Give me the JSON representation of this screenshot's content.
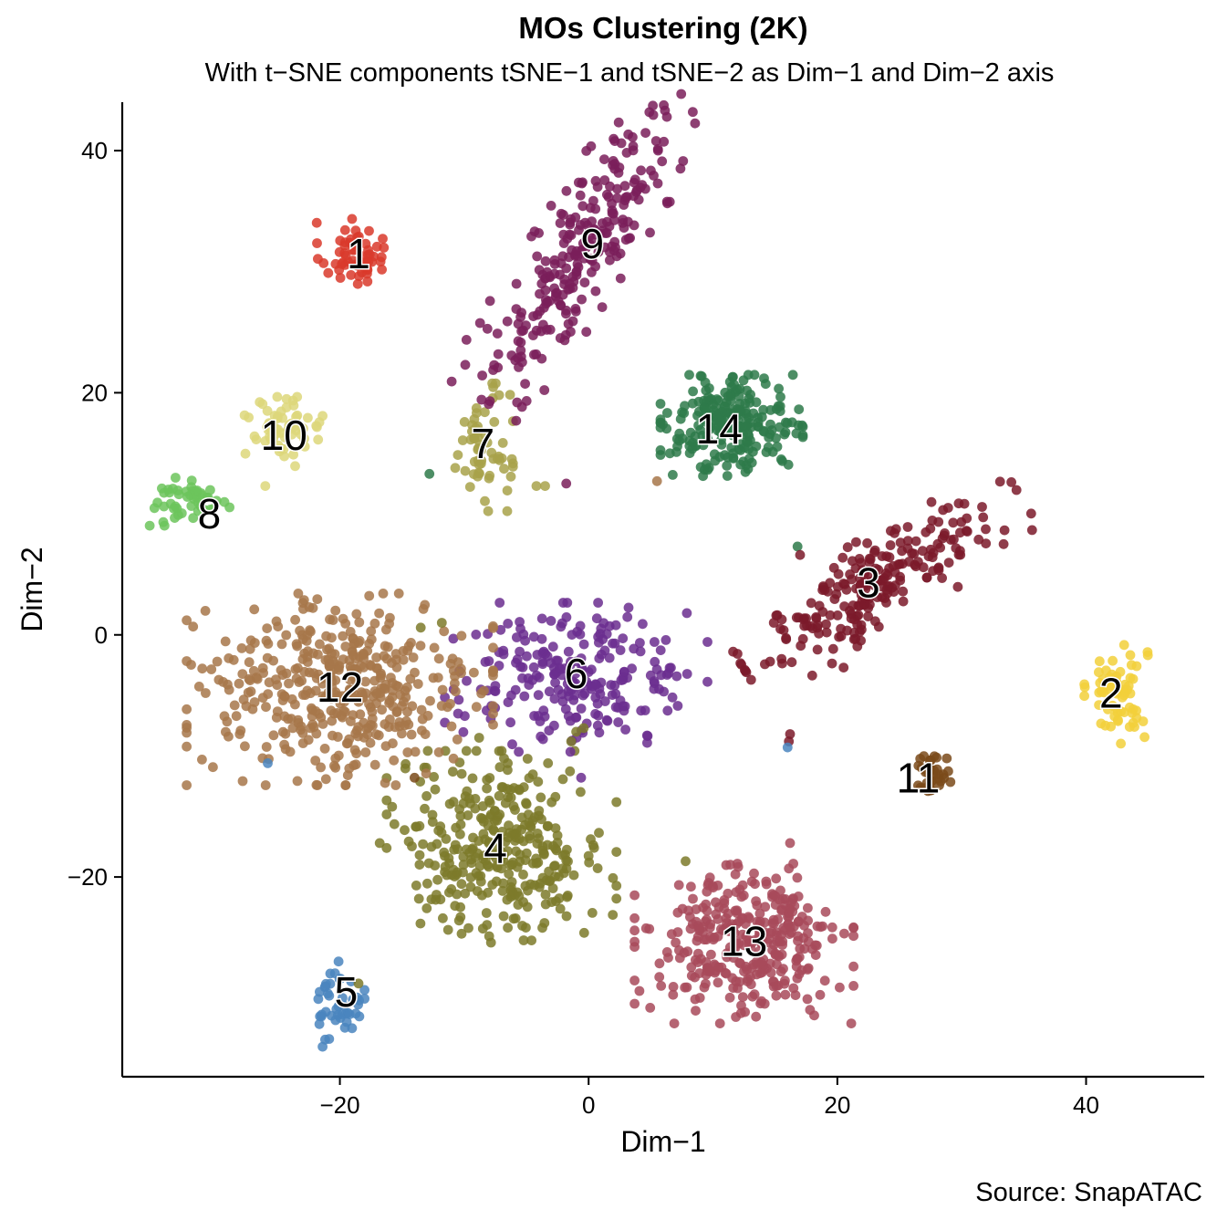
{
  "chart_data": {
    "type": "scatter",
    "title": "MOs Clustering (2K)",
    "subtitle": "With t−SNE components tSNE−1 and tSNE−2 as Dim−1 and Dim−2 axis",
    "xlabel": "Dim−1",
    "ylabel": "Dim−2",
    "caption": "Source: SnapATAC",
    "xlim": [
      -37.5,
      49.5
    ],
    "ylim": [
      -36.5,
      44
    ],
    "x_ticks": [
      -20,
      0,
      20,
      40
    ],
    "y_ticks": [
      -20,
      0,
      20,
      40
    ],
    "tick_labels": {
      "x": [
        "−20",
        "0",
        "20",
        "40"
      ],
      "y": [
        "−20",
        "0",
        "20",
        "40"
      ]
    },
    "grid": false,
    "legend": "none",
    "clusters": [
      {
        "id": "1",
        "color": "#d93a2b",
        "cx": -19.0,
        "cy": 31.5,
        "sx": 1.3,
        "sy": 1.3,
        "angle": 0,
        "n": 60,
        "label_x": -18.5,
        "label_y": 31.5
      },
      {
        "id": "2",
        "color": "#f2d03b",
        "cx": 42.5,
        "cy": -4.8,
        "sx": 1.2,
        "sy": 2.0,
        "angle": 0,
        "n": 70,
        "label_x": 42.0,
        "label_y": -4.8
      },
      {
        "id": "3",
        "color": "#7b1a2a",
        "cx": 23.5,
        "cy": 4.5,
        "sx": 6.0,
        "sy": 1.7,
        "angle": 32,
        "n": 230,
        "label_x": 22.5,
        "label_y": 4.3
      },
      {
        "id": "4",
        "color": "#7d7a2a",
        "cx": -7.0,
        "cy": -17.5,
        "sx": 4.2,
        "sy": 3.6,
        "angle": 0,
        "n": 330,
        "label_x": -7.5,
        "label_y": -17.6
      },
      {
        "id": "5",
        "color": "#4a85be",
        "cx": -20.0,
        "cy": -30.5,
        "sx": 0.9,
        "sy": 1.6,
        "angle": 0,
        "n": 45,
        "label_x": -19.5,
        "label_y": -29.5
      },
      {
        "id": "6",
        "color": "#6b2e8f",
        "cx": -1.0,
        "cy": -3.5,
        "sx": 4.8,
        "sy": 2.8,
        "angle": 0,
        "n": 230,
        "label_x": -1.0,
        "label_y": -3.2
      },
      {
        "id": "7",
        "color": "#a8a24a",
        "cx": -8.5,
        "cy": 15.5,
        "sx": 1.1,
        "sy": 2.4,
        "angle": 0,
        "n": 60,
        "label_x": -8.5,
        "label_y": 15.8
      },
      {
        "id": "8",
        "color": "#6cc45c",
        "cx": -32.0,
        "cy": 11.0,
        "sx": 1.5,
        "sy": 0.9,
        "angle": 0,
        "n": 50,
        "label_x": -30.5,
        "label_y": 10.0
      },
      {
        "id": "9",
        "color": "#7a1e5a",
        "cx": -0.5,
        "cy": 32.0,
        "sx": 6.8,
        "sy": 1.8,
        "angle": 58,
        "n": 260,
        "label_x": 0.3,
        "label_y": 32.3
      },
      {
        "id": "10",
        "color": "#ddd77a",
        "cx": -24.5,
        "cy": 16.8,
        "sx": 1.6,
        "sy": 1.3,
        "angle": 0,
        "n": 60,
        "label_x": -24.5,
        "label_y": 16.5
      },
      {
        "id": "11",
        "color": "#7a4a1a",
        "cx": 27.5,
        "cy": -11.5,
        "sx": 0.8,
        "sy": 0.9,
        "angle": 0,
        "n": 35,
        "label_x": 26.5,
        "label_y": -11.8
      },
      {
        "id": "12",
        "color": "#a7774a",
        "cx": -20.0,
        "cy": -4.5,
        "sx": 5.6,
        "sy": 3.6,
        "angle": 0,
        "n": 430,
        "label_x": -20.0,
        "label_y": -4.3
      },
      {
        "id": "13",
        "color": "#a84a5a",
        "cx": 12.5,
        "cy": -25.5,
        "sx": 4.0,
        "sy": 3.0,
        "angle": 0,
        "n": 330,
        "label_x": 12.5,
        "label_y": -25.3
      },
      {
        "id": "14",
        "color": "#2e7a4a",
        "cx": 11.5,
        "cy": 17.3,
        "sx": 2.6,
        "sy": 1.9,
        "angle": 0,
        "n": 230,
        "label_x": 10.5,
        "label_y": 17.0
      }
    ],
    "stray_points": [
      {
        "x": -12.8,
        "y": 13.3,
        "color": "#2e7a4a"
      },
      {
        "x": -1.8,
        "y": 12.5,
        "color": "#7a1e5a"
      },
      {
        "x": -3.5,
        "y": 12.3,
        "color": "#a8a24a"
      },
      {
        "x": -4.2,
        "y": 12.3,
        "color": "#a8a24a"
      },
      {
        "x": 5.5,
        "y": 12.7,
        "color": "#a7774a"
      },
      {
        "x": 16.8,
        "y": 7.3,
        "color": "#2e7a4a"
      },
      {
        "x": 17.0,
        "y": 6.6,
        "color": "#7b1a2a"
      },
      {
        "x": 16.2,
        "y": -8.2,
        "color": "#7b1a2a"
      },
      {
        "x": 16.1,
        "y": -8.8,
        "color": "#7b1a2a"
      },
      {
        "x": 16.0,
        "y": -9.3,
        "color": "#4a85be"
      },
      {
        "x": 20.5,
        "y": -2.7,
        "color": "#7b1a2a"
      },
      {
        "x": -25.8,
        "y": -10.6,
        "color": "#4a85be"
      },
      {
        "x": -14.0,
        "y": -11.8,
        "color": "#7a4a1a"
      },
      {
        "x": -15.8,
        "y": -14.2,
        "color": "#7d7a2a"
      },
      {
        "x": -16.8,
        "y": -17.2,
        "color": "#7d7a2a"
      },
      {
        "x": -10.5,
        "y": -6.5,
        "color": "#6b2e8f"
      },
      {
        "x": -8.8,
        "y": -8.5,
        "color": "#7d7a2a"
      },
      {
        "x": -7.2,
        "y": -9.6,
        "color": "#7d7a2a"
      },
      {
        "x": -6.8,
        "y": -10.2,
        "color": "#7d7a2a"
      },
      {
        "x": -6.5,
        "y": -10.6,
        "color": "#7d7a2a"
      },
      {
        "x": -1.0,
        "y": -8.0,
        "color": "#7d7a2a"
      },
      {
        "x": -0.4,
        "y": -7.7,
        "color": "#7d7a2a"
      },
      {
        "x": -0.6,
        "y": -11.8,
        "color": "#6b2e8f"
      },
      {
        "x": -1.4,
        "y": -8.8,
        "color": "#7d7a2a"
      },
      {
        "x": -13.5,
        "y": 0.6,
        "color": "#7d7a2a"
      },
      {
        "x": -11.8,
        "y": 1.0,
        "color": "#7d7a2a"
      },
      {
        "x": 7.8,
        "y": -18.7,
        "color": "#7d7a2a"
      },
      {
        "x": 16.2,
        "y": -17.2,
        "color": "#a84a5a"
      },
      {
        "x": -18.5,
        "y": -28.8,
        "color": "#7d7a2a"
      },
      {
        "x": -26.0,
        "y": 12.3,
        "color": "#ddd77a"
      }
    ],
    "point_radius_px": 5.4,
    "point_opacity": 0.85
  }
}
